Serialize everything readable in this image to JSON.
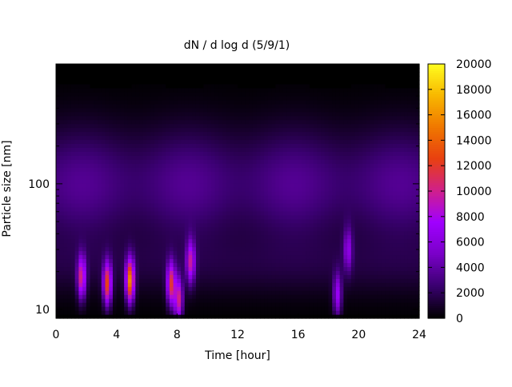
{
  "chart_data": {
    "type": "heatmap",
    "title": "dN / d log d (5/9/1)",
    "xlabel": "Time [hour]",
    "ylabel": "Particle size [nm]",
    "x_range": [
      0,
      24
    ],
    "x_ticks": [
      "0",
      "4",
      "8",
      "12",
      "16",
      "20",
      "24"
    ],
    "y_scale": "log",
    "y_range_nm": [
      8.5,
      900
    ],
    "y_ticks": [
      "10",
      "100"
    ],
    "colorbar": {
      "range": [
        0,
        20000
      ],
      "ticks": [
        "0",
        "2000",
        "4000",
        "6000",
        "8000",
        "10000",
        "12000",
        "14000",
        "16000",
        "18000",
        "20000"
      ],
      "palette": [
        "#000000",
        "#3a0070",
        "#7a00c8",
        "#a000ff",
        "#d0208a",
        "#e84010",
        "#f07800",
        "#f8b800",
        "#ffff20"
      ]
    },
    "background_level": 3500,
    "upper_cutoff_nm": 600,
    "events": [
      {
        "hour": 1.7,
        "size_nm": 18,
        "peak": 9500
      },
      {
        "hour": 3.4,
        "size_nm": 16,
        "peak": 11500
      },
      {
        "hour": 4.9,
        "size_nm": 17,
        "peak": 14500
      },
      {
        "hour": 7.6,
        "size_nm": 16,
        "peak": 10500
      },
      {
        "hour": 8.1,
        "size_nm": 12,
        "peak": 9500
      },
      {
        "hour": 8.9,
        "size_nm": 24,
        "peak": 8000
      },
      {
        "hour": 18.6,
        "size_nm": 13,
        "peak": 6500
      },
      {
        "hour": 19.3,
        "size_nm": 30,
        "peak": 5000
      }
    ],
    "grid": false,
    "legend": "colorbar-right"
  }
}
